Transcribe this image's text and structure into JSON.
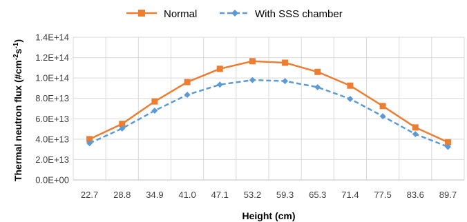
{
  "chart_data": {
    "type": "line",
    "categories": [
      "22.7",
      "28.8",
      "34.9",
      "41.0",
      "47.1",
      "53.2",
      "59.3",
      "65.3",
      "71.4",
      "77.5",
      "83.6",
      "89.7"
    ],
    "series": [
      {
        "name": "Normal",
        "color": "#ED7D31",
        "line_style": "solid",
        "marker": "square",
        "values": [
          40000000000000.0,
          55000000000000.0,
          77000000000000.0,
          96000000000000.0,
          109000000000000.0,
          116500000000000.0,
          115000000000000.0,
          106000000000000.0,
          92500000000000.0,
          72500000000000.0,
          51500000000000.0,
          37000000000000.0
        ]
      },
      {
        "name": "With SSS chamber",
        "color": "#5B9BD5",
        "line_style": "dashed",
        "marker": "diamond",
        "values": [
          36000000000000.0,
          50500000000000.0,
          68000000000000.0,
          83500000000000.0,
          93500000000000.0,
          98000000000000.0,
          97000000000000.0,
          91000000000000.0,
          79500000000000.0,
          62500000000000.0,
          45000000000000.0,
          32500000000000.0
        ]
      }
    ],
    "y_ticks": [
      "0.0E+00",
      "2.0E+13",
      "4.0E+13",
      "6.0E+13",
      "8.0E+13",
      "1.0E+14",
      "1.2E+14",
      "1.4E+14"
    ],
    "ylim": [
      0,
      140000000000000.0
    ],
    "xlabel": "Height (cm)",
    "ylabel": "Thermal neutron flux (#cm",
    "ylabel_sup1": "-2",
    "ylabel_mid": "s",
    "ylabel_sup2": "-1",
    "ylabel_end": ")",
    "grid": true,
    "legend_position": "top"
  }
}
